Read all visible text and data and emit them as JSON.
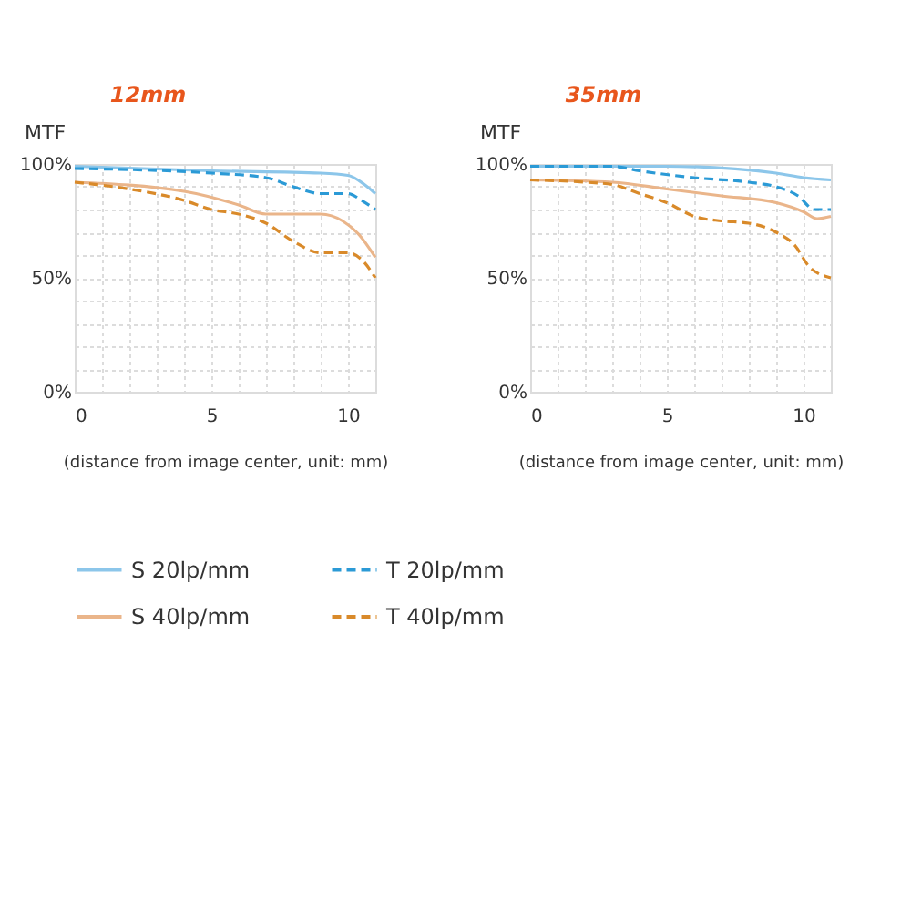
{
  "chart_data": [
    {
      "type": "line",
      "title": "12mm",
      "ylabel": "MTF",
      "xlabel": "(distance from image center, unit: mm)",
      "xlim": [
        0,
        11
      ],
      "ylim": [
        0,
        100
      ],
      "xticks": [
        0,
        {
          "value": 1,
          "label": null
        },
        {
          "value": 2,
          "label": null
        },
        {
          "value": 3,
          "label": null
        },
        {
          "value": 4,
          "label": null
        },
        5,
        {
          "value": 6,
          "label": null
        },
        {
          "value": 7,
          "label": null
        },
        {
          "value": 8,
          "label": null
        },
        {
          "value": 9,
          "label": null
        },
        10,
        {
          "value": 11,
          "label": null
        }
      ],
      "yticks": [
        {
          "value": 0,
          "label": "0%"
        },
        {
          "value": 10,
          "label": null
        },
        {
          "value": 20,
          "label": null
        },
        {
          "value": 30,
          "label": null
        },
        {
          "value": 40,
          "label": null
        },
        {
          "value": 50,
          "label": "50%"
        },
        {
          "value": 60,
          "label": null
        },
        {
          "value": 70,
          "label": null
        },
        {
          "value": 80,
          "label": null
        },
        {
          "value": 90,
          "label": null
        },
        {
          "value": 100,
          "label": "100%"
        }
      ],
      "grid": true,
      "legend": "bottom",
      "marker": "none",
      "series": [
        {
          "name": "S 20lp/mm",
          "color": "#8cc6ea",
          "line_style": "solid",
          "x": [
            0,
            5,
            9,
            10,
            10.6,
            11
          ],
          "values": [
            99,
            97,
            96,
            95,
            91,
            87
          ]
        },
        {
          "name": "T 20lp/mm",
          "color": "#2b9ad6",
          "line_style": "dashed",
          "x": [
            0,
            5,
            7,
            8,
            9,
            10,
            10.5,
            11
          ],
          "values": [
            98,
            96,
            94,
            90,
            87,
            87,
            84,
            80
          ]
        },
        {
          "name": "S 40lp/mm",
          "color": "#eab58a",
          "line_style": "solid",
          "x": [
            0,
            4,
            6,
            7,
            8,
            9,
            9.8,
            10.4,
            11
          ],
          "values": [
            92,
            88,
            82,
            78,
            78,
            78,
            75,
            69,
            59
          ]
        },
        {
          "name": "T 40lp/mm",
          "color": "#d98a2a",
          "line_style": "dashed",
          "x": [
            0,
            2,
            4,
            5,
            6,
            7,
            8,
            9,
            10,
            10.5,
            11
          ],
          "values": [
            92,
            89,
            84,
            80,
            78,
            74,
            66,
            61,
            61,
            58,
            50
          ]
        }
      ]
    },
    {
      "type": "line",
      "title": "35mm",
      "ylabel": "MTF",
      "xlabel": "(distance from image center, unit: mm)",
      "xlim": [
        0,
        11
      ],
      "ylim": [
        0,
        100
      ],
      "xticks": [
        0,
        {
          "value": 1,
          "label": null
        },
        {
          "value": 2,
          "label": null
        },
        {
          "value": 3,
          "label": null
        },
        {
          "value": 4,
          "label": null
        },
        5,
        {
          "value": 6,
          "label": null
        },
        {
          "value": 7,
          "label": null
        },
        {
          "value": 8,
          "label": null
        },
        {
          "value": 9,
          "label": null
        },
        10,
        {
          "value": 11,
          "label": null
        }
      ],
      "yticks": [
        {
          "value": 0,
          "label": "0%"
        },
        {
          "value": 10,
          "label": null
        },
        {
          "value": 20,
          "label": null
        },
        {
          "value": 30,
          "label": null
        },
        {
          "value": 40,
          "label": null
        },
        {
          "value": 50,
          "label": "50%"
        },
        {
          "value": 60,
          "label": null
        },
        {
          "value": 70,
          "label": null
        },
        {
          "value": 80,
          "label": null
        },
        {
          "value": 90,
          "label": null
        },
        {
          "value": 100,
          "label": "100%"
        }
      ],
      "grid": true,
      "legend": "bottom",
      "marker": "none",
      "series": [
        {
          "name": "S 20lp/mm",
          "color": "#8cc6ea",
          "line_style": "solid",
          "x": [
            0,
            5,
            9,
            10,
            11
          ],
          "values": [
            99,
            99,
            96,
            94,
            93
          ]
        },
        {
          "name": "T 20lp/mm",
          "color": "#2b9ad6",
          "line_style": "dashed",
          "x": [
            0,
            3,
            4,
            6,
            8,
            9,
            9.8,
            10.4,
            11
          ],
          "values": [
            99,
            99,
            97,
            94,
            92,
            90,
            86,
            80,
            80
          ]
        },
        {
          "name": "S 40lp/mm",
          "color": "#eab58a",
          "line_style": "solid",
          "x": [
            0,
            3,
            5,
            7,
            9,
            10,
            10.5,
            11
          ],
          "values": [
            93,
            92,
            89,
            86,
            83,
            79,
            76,
            77
          ]
        },
        {
          "name": "T 40lp/mm",
          "color": "#d98a2a",
          "line_style": "dashed",
          "x": [
            0,
            2,
            3,
            4,
            5,
            6,
            7,
            8,
            9,
            9.7,
            10.2,
            11
          ],
          "values": [
            93,
            92,
            91,
            87,
            83,
            77,
            75,
            74,
            70,
            64,
            55,
            50
          ]
        }
      ]
    }
  ]
}
